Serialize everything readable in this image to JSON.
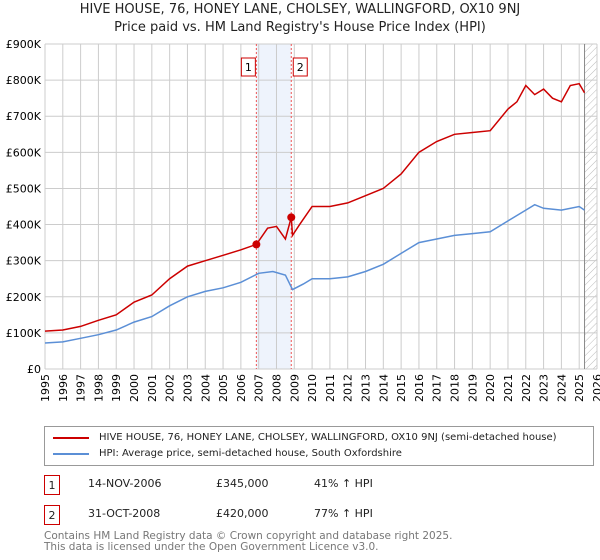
{
  "chart_data": {
    "type": "line",
    "title": "HIVE HOUSE, 76, HONEY LANE, CHOLSEY, WALLINGFORD, OX10 9NJ",
    "subtitle": "Price paid vs. HM Land Registry's House Price Index (HPI)",
    "xlim": [
      1995,
      2026
    ],
    "ylim": [
      0,
      900000
    ],
    "y_ticks": [
      {
        "v": 0,
        "label": "£0"
      },
      {
        "v": 100000,
        "label": "£100K"
      },
      {
        "v": 200000,
        "label": "£200K"
      },
      {
        "v": 300000,
        "label": "£300K"
      },
      {
        "v": 400000,
        "label": "£400K"
      },
      {
        "v": 500000,
        "label": "£500K"
      },
      {
        "v": 600000,
        "label": "£600K"
      },
      {
        "v": 700000,
        "label": "£700K"
      },
      {
        "v": 800000,
        "label": "£800K"
      },
      {
        "v": 900000,
        "label": "£900K"
      }
    ],
    "x_ticks": [
      "1995",
      "1996",
      "1997",
      "1998",
      "1999",
      "2000",
      "2001",
      "2002",
      "2003",
      "2004",
      "2005",
      "2006",
      "2007",
      "2008",
      "2009",
      "2010",
      "2011",
      "2012",
      "2013",
      "2014",
      "2015",
      "2016",
      "2017",
      "2018",
      "2019",
      "2020",
      "2021",
      "2022",
      "2023",
      "2024",
      "2025",
      "2026"
    ],
    "grid": true,
    "forecast_hatch_from": 2025.3,
    "series": [
      {
        "name": "HIVE HOUSE, 76, HONEY LANE, CHOLSEY, WALLINGFORD, OX10 9NJ (semi-detached house)",
        "color": "#cc0000",
        "x": [
          1995,
          1996,
          1997,
          1998,
          1999,
          2000,
          2001,
          2002,
          2003,
          2004,
          2005,
          2006,
          2006.87,
          2007.5,
          2008.0,
          2008.5,
          2008.83,
          2008.9,
          2009.3,
          2010,
          2011,
          2012,
          2013,
          2014,
          2015,
          2016,
          2017,
          2018,
          2019,
          2020,
          2021,
          2021.5,
          2022,
          2022.5,
          2023,
          2023.5,
          2024,
          2024.5,
          2025,
          2025.3
        ],
        "y": [
          105000,
          108000,
          118000,
          135000,
          150000,
          185000,
          205000,
          250000,
          285000,
          300000,
          315000,
          330000,
          345000,
          390000,
          395000,
          360000,
          420000,
          370000,
          400000,
          450000,
          450000,
          460000,
          480000,
          500000,
          540000,
          600000,
          630000,
          650000,
          655000,
          660000,
          720000,
          740000,
          785000,
          760000,
          775000,
          750000,
          740000,
          785000,
          790000,
          765000
        ]
      },
      {
        "name": "HPI: Average price, semi-detached house, South Oxfordshire",
        "color": "#5b8fd6",
        "x": [
          1995,
          1996,
          1997,
          1998,
          1999,
          2000,
          2001,
          2002,
          2003,
          2004,
          2005,
          2006,
          2007,
          2007.8,
          2008.5,
          2008.9,
          2009.5,
          2010,
          2011,
          2012,
          2013,
          2014,
          2015,
          2016,
          2017,
          2018,
          2019,
          2020,
          2021,
          2022,
          2022.5,
          2023,
          2024,
          2025,
          2025.3
        ],
        "y": [
          72000,
          75000,
          85000,
          95000,
          108000,
          130000,
          145000,
          175000,
          200000,
          215000,
          225000,
          240000,
          265000,
          270000,
          260000,
          220000,
          235000,
          250000,
          250000,
          255000,
          270000,
          290000,
          320000,
          350000,
          360000,
          370000,
          375000,
          380000,
          410000,
          440000,
          455000,
          445000,
          440000,
          450000,
          440000
        ]
      }
    ],
    "sales": [
      {
        "label": "1",
        "x": 2006.87,
        "y": 345000
      },
      {
        "label": "2",
        "x": 2008.83,
        "y": 420000
      }
    ]
  },
  "legend": {
    "red": "HIVE HOUSE, 76, HONEY LANE, CHOLSEY, WALLINGFORD, OX10 9NJ (semi-detached house)",
    "blue": "HPI: Average price, semi-detached house, South Oxfordshire"
  },
  "transactions": [
    {
      "num": "1",
      "date": "14-NOV-2006",
      "price": "£345,000",
      "hpi": "41% ↑ HPI"
    },
    {
      "num": "2",
      "date": "31-OCT-2008",
      "price": "£420,000",
      "hpi": "77% ↑ HPI"
    }
  ],
  "footer": {
    "line1": "Contains HM Land Registry data © Crown copyright and database right 2025.",
    "line2": "This data is licensed under the Open Government Licence v3.0."
  }
}
